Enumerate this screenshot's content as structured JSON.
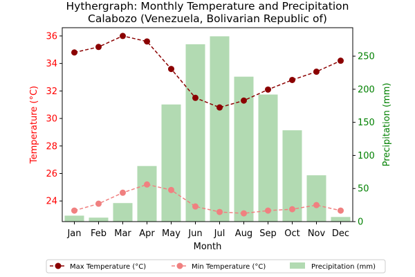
{
  "chart_data": {
    "type": "bar+line",
    "title_line1": "Hythergraph: Monthly Temperature and Precipitation",
    "title_line2": "Calabozo (Venezuela, Bolivarian Republic of)",
    "xlabel": "Month",
    "ylabel_left": "Temperature (°C)",
    "ylabel_right": "Precipitation (mm)",
    "categories": [
      "Jan",
      "Feb",
      "Mar",
      "Apr",
      "May",
      "Jun",
      "Jul",
      "Aug",
      "Sep",
      "Oct",
      "Nov",
      "Dec"
    ],
    "series": [
      {
        "name": "Max Temperature (°C)",
        "axis": "left",
        "kind": "line",
        "values": [
          34.8,
          35.2,
          36.0,
          35.6,
          33.6,
          31.5,
          30.8,
          31.3,
          32.1,
          32.8,
          33.4,
          34.2
        ]
      },
      {
        "name": "Min Temperature (°C)",
        "axis": "left",
        "kind": "line",
        "values": [
          23.3,
          23.8,
          24.6,
          25.2,
          24.8,
          23.6,
          23.2,
          23.1,
          23.3,
          23.4,
          23.7,
          23.3
        ]
      },
      {
        "name": "Precipitation (mm)",
        "axis": "right",
        "kind": "bar",
        "values": [
          9,
          6,
          28,
          84,
          177,
          268,
          280,
          219,
          192,
          138,
          70,
          7
        ]
      }
    ],
    "ylim_left": [
      22.5,
      36.6
    ],
    "ylim_right": [
      0,
      293
    ],
    "yticks_left": [
      24,
      26,
      28,
      30,
      32,
      34,
      36
    ],
    "yticks_right": [
      0,
      50,
      100,
      150,
      200,
      250
    ],
    "colors": {
      "max_line": "#8b0000",
      "min_line": "#f08080",
      "bars": "#b2dab2",
      "left_axis": "#ff0000",
      "right_axis": "#008000"
    },
    "legend_position": "bottom-center"
  }
}
